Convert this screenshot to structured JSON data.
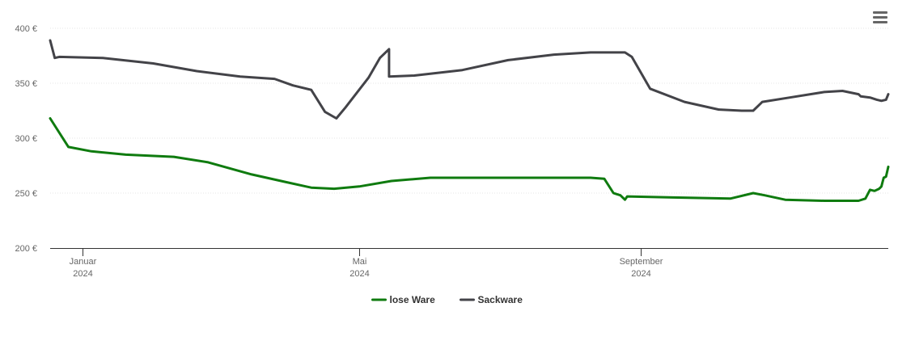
{
  "chart_data": {
    "type": "line",
    "y_ticks": [
      {
        "value": 200,
        "label": "200 €"
      },
      {
        "value": 250,
        "label": "250 €"
      },
      {
        "value": 300,
        "label": "300 €"
      },
      {
        "value": 350,
        "label": "350 €"
      },
      {
        "value": 400,
        "label": "400 €"
      }
    ],
    "ylim": [
      200,
      400
    ],
    "xlim": [
      "2023-12-18",
      "2024-12-18"
    ],
    "x_ticks": [
      {
        "date": "2024-01-01",
        "month": "Januar",
        "year": "2024"
      },
      {
        "date": "2024-05-01",
        "month": "Mai",
        "year": "2024"
      },
      {
        "date": "2024-09-01",
        "month": "September",
        "year": "2024"
      }
    ],
    "grid": "horizontal",
    "legend_position": "bottom-center",
    "series": [
      {
        "name": "lose Ware",
        "color": "#0f7b0f",
        "points": [
          [
            "2023-12-18",
            318
          ],
          [
            "2023-12-26",
            292
          ],
          [
            "2024-01-05",
            288
          ],
          [
            "2024-01-20",
            285
          ],
          [
            "2024-02-10",
            283
          ],
          [
            "2024-02-25",
            278
          ],
          [
            "2024-03-15",
            267
          ],
          [
            "2024-03-30",
            260
          ],
          [
            "2024-04-10",
            255
          ],
          [
            "2024-04-20",
            254
          ],
          [
            "2024-05-01",
            256
          ],
          [
            "2024-05-15",
            261
          ],
          [
            "2024-06-01",
            264
          ],
          [
            "2024-07-01",
            264
          ],
          [
            "2024-08-10",
            264
          ],
          [
            "2024-08-16",
            263
          ],
          [
            "2024-08-20",
            250
          ],
          [
            "2024-08-23",
            248
          ],
          [
            "2024-08-25",
            244
          ],
          [
            "2024-08-26",
            247
          ],
          [
            "2024-09-15",
            246
          ],
          [
            "2024-10-10",
            245
          ],
          [
            "2024-10-20",
            250
          ],
          [
            "2024-10-25",
            248
          ],
          [
            "2024-11-03",
            244
          ],
          [
            "2024-11-20",
            243
          ],
          [
            "2024-12-05",
            243
          ],
          [
            "2024-12-08",
            245
          ],
          [
            "2024-12-10",
            253
          ],
          [
            "2024-12-12",
            252
          ],
          [
            "2024-12-14",
            254
          ],
          [
            "2024-12-15",
            256
          ],
          [
            "2024-12-16",
            264
          ],
          [
            "2024-12-17",
            265
          ],
          [
            "2024-12-18",
            274
          ]
        ]
      },
      {
        "name": "Sackware",
        "color": "#434348",
        "points": [
          [
            "2023-12-18",
            389
          ],
          [
            "2023-12-20",
            373
          ],
          [
            "2023-12-22",
            374
          ],
          [
            "2024-01-10",
            373
          ],
          [
            "2024-02-01",
            368
          ],
          [
            "2024-02-20",
            361
          ],
          [
            "2024-03-10",
            356
          ],
          [
            "2024-03-25",
            354
          ],
          [
            "2024-04-02",
            348
          ],
          [
            "2024-04-10",
            344
          ],
          [
            "2024-04-16",
            324
          ],
          [
            "2024-04-21",
            318
          ],
          [
            "2024-04-25",
            328
          ],
          [
            "2024-05-05",
            355
          ],
          [
            "2024-05-10",
            373
          ],
          [
            "2024-05-14",
            381
          ],
          [
            "2024-05-14",
            356
          ],
          [
            "2024-05-25",
            357
          ],
          [
            "2024-06-15",
            362
          ],
          [
            "2024-07-05",
            371
          ],
          [
            "2024-07-25",
            376
          ],
          [
            "2024-08-10",
            378
          ],
          [
            "2024-08-25",
            378
          ],
          [
            "2024-08-28",
            374
          ],
          [
            "2024-09-05",
            345
          ],
          [
            "2024-09-20",
            333
          ],
          [
            "2024-10-05",
            326
          ],
          [
            "2024-10-15",
            325
          ],
          [
            "2024-10-20",
            325
          ],
          [
            "2024-10-24",
            333
          ],
          [
            "2024-11-05",
            337
          ],
          [
            "2024-11-20",
            342
          ],
          [
            "2024-11-28",
            343
          ],
          [
            "2024-12-05",
            340
          ],
          [
            "2024-12-06",
            338
          ],
          [
            "2024-12-10",
            337
          ],
          [
            "2024-12-13",
            335
          ],
          [
            "2024-12-15",
            334
          ],
          [
            "2024-12-17",
            335
          ],
          [
            "2024-12-18",
            340
          ]
        ]
      }
    ]
  },
  "menu": {
    "icon": "hamburger-menu-icon"
  }
}
